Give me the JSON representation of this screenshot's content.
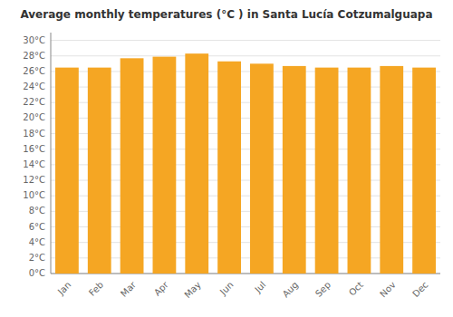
{
  "chart_data": {
    "type": "bar",
    "title": "Average monthly temperatures (°C ) in Santa Lucía Cotzumalguapa",
    "categories": [
      "Jan",
      "Feb",
      "Mar",
      "Apr",
      "May",
      "Jun",
      "Jul",
      "Aug",
      "Sep",
      "Oct",
      "Nov",
      "Dec"
    ],
    "values": [
      26.5,
      26.5,
      27.7,
      27.9,
      28.3,
      27.3,
      27.0,
      26.7,
      26.5,
      26.5,
      26.7,
      26.5
    ],
    "color": "#F5A623",
    "ylim": [
      0,
      31
    ],
    "yticks": [
      {
        "value": 0,
        "label": "0°C"
      },
      {
        "value": 2,
        "label": "2°C"
      },
      {
        "value": 4,
        "label": "4°C"
      },
      {
        "value": 6,
        "label": "6°C"
      },
      {
        "value": 8,
        "label": "8°C"
      },
      {
        "value": 10,
        "label": "10°C"
      },
      {
        "value": 12,
        "label": "12°C"
      },
      {
        "value": 14,
        "label": "14°C"
      },
      {
        "value": 16,
        "label": "16°C"
      },
      {
        "value": 18,
        "label": "18°C"
      },
      {
        "value": 20,
        "label": "20°C"
      },
      {
        "value": 22,
        "label": "22°C"
      },
      {
        "value": 24,
        "label": "24°C"
      },
      {
        "value": 26,
        "label": "26°C"
      },
      {
        "value": 28,
        "label": "28°C"
      },
      {
        "value": 30,
        "label": "30°C"
      }
    ],
    "grid": true
  }
}
